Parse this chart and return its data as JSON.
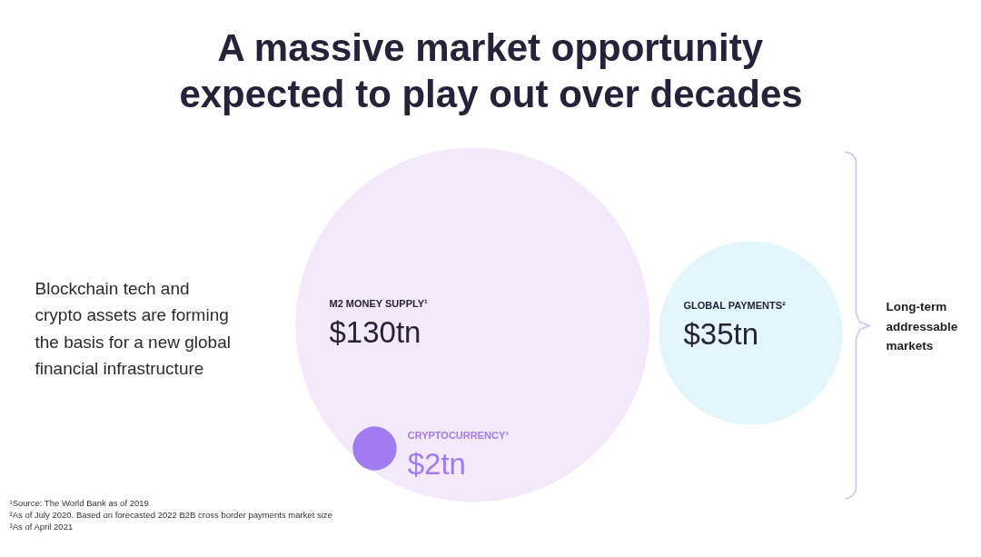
{
  "chart_data": {
    "type": "other",
    "title": "A massive market opportunity\nexpected to play out over decades",
    "categories": [
      "M2 MONEY SUPPLY¹",
      "GLOBAL PAYMENTS²",
      "CRYPTOCURRENCY³"
    ],
    "values": [
      130,
      35,
      2
    ],
    "value_labels": [
      "$130tn",
      "$35tn",
      "$2tn"
    ],
    "colors": [
      "#f4e8fb",
      "#e2f6fb",
      "#a07cf0"
    ],
    "annotations": [
      "Blockchain tech and\ncrypto assets are forming\nthe basis for a new global\nfinancial infrastructure",
      "Long-term\naddressable\nmarkets",
      "¹Source: The World Bank as of 2019",
      "²As of July 2020. Based on forecasted 2022 B2B cross border payments market size",
      "³As of April 2021"
    ]
  }
}
